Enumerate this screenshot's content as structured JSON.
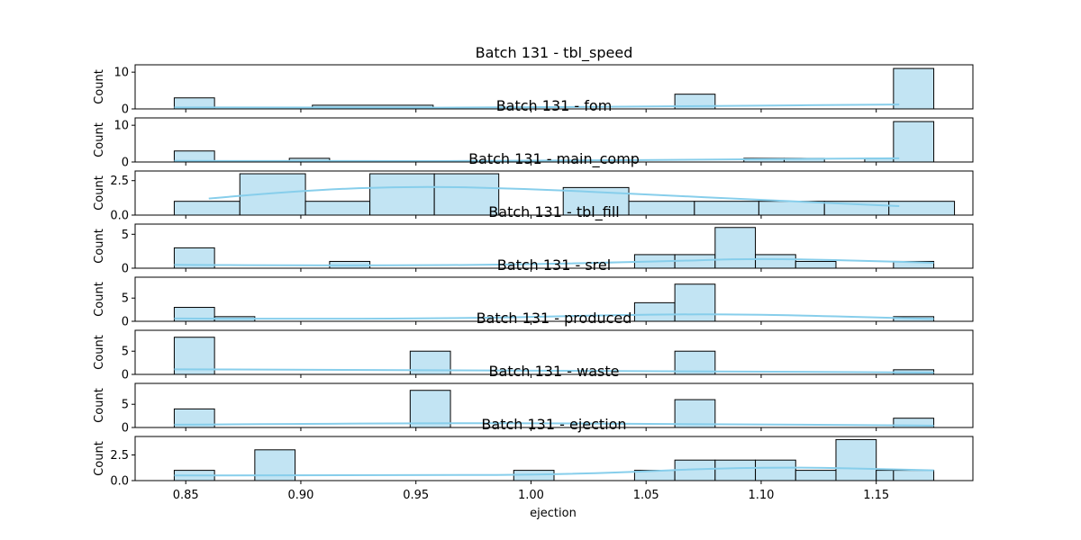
{
  "chart_data": {
    "type": "bar",
    "xlabel": "ejection",
    "xlim": [
      0.828,
      1.192
    ],
    "x_ticks": [
      "0.85",
      "0.90",
      "0.95",
      "1.00",
      "1.05",
      "1.10",
      "1.15"
    ],
    "bar_color": "#c2e4f3",
    "kde_color": "#87ceeb",
    "panels": [
      {
        "title": "Batch 131 - tbl_speed",
        "ylabel": "Count",
        "ylim": [
          0,
          12
        ],
        "y_ticks": [
          "0",
          "10"
        ],
        "y_tick_values": [
          0,
          10
        ],
        "bars": [
          {
            "x0": 0.845,
            "x1": 0.8625,
            "count": 3
          },
          {
            "x0": 0.905,
            "x1": 0.9575,
            "count": 1
          },
          {
            "x0": 1.0625,
            "x1": 1.08,
            "count": 4
          },
          {
            "x0": 1.1575,
            "x1": 1.175,
            "count": 11
          }
        ],
        "kde": [
          [
            0.845,
            0.4
          ],
          [
            0.92,
            0.3
          ],
          [
            1.0,
            0.4
          ],
          [
            1.08,
            0.8
          ],
          [
            1.16,
            1.2
          ]
        ]
      },
      {
        "title": "Batch 131 - fom",
        "ylabel": "Count",
        "ylim": [
          0,
          12
        ],
        "y_ticks": [
          "0",
          "10"
        ],
        "y_tick_values": [
          0,
          10
        ],
        "bars": [
          {
            "x0": 0.845,
            "x1": 0.8625,
            "count": 3
          },
          {
            "x0": 0.895,
            "x1": 0.9125,
            "count": 1
          },
          {
            "x0": 1.0925,
            "x1": 1.11,
            "count": 1
          },
          {
            "x0": 1.11,
            "x1": 1.1275,
            "count": 1
          },
          {
            "x0": 1.145,
            "x1": 1.1625,
            "count": 1
          },
          {
            "x0": 1.1575,
            "x1": 1.175,
            "count": 11
          }
        ],
        "kde": [
          [
            0.845,
            0.3
          ],
          [
            0.92,
            0.2
          ],
          [
            1.0,
            0.3
          ],
          [
            1.08,
            0.7
          ],
          [
            1.16,
            1.0
          ]
        ]
      },
      {
        "title": "Batch 131 - main_comp",
        "ylabel": "Count",
        "ylim": [
          0,
          3.2
        ],
        "y_ticks": [
          "0.0",
          "2.5"
        ],
        "y_tick_values": [
          0,
          2.5
        ],
        "bars": [
          {
            "x0": 0.845,
            "x1": 0.8735,
            "count": 1
          },
          {
            "x0": 0.8735,
            "x1": 0.902,
            "count": 3
          },
          {
            "x0": 0.902,
            "x1": 0.93,
            "count": 1
          },
          {
            "x0": 0.93,
            "x1": 0.958,
            "count": 3
          },
          {
            "x0": 0.958,
            "x1": 0.986,
            "count": 3
          },
          {
            "x0": 1.014,
            "x1": 1.0425,
            "count": 2
          },
          {
            "x0": 1.0425,
            "x1": 1.071,
            "count": 1
          },
          {
            "x0": 1.071,
            "x1": 1.099,
            "count": 1
          },
          {
            "x0": 1.099,
            "x1": 1.1275,
            "count": 1
          },
          {
            "x0": 1.1275,
            "x1": 1.1555,
            "count": 1
          },
          {
            "x0": 1.1555,
            "x1": 1.184,
            "count": 1
          }
        ],
        "kde": [
          [
            0.86,
            1.2
          ],
          [
            0.9,
            1.8
          ],
          [
            0.95,
            2.1
          ],
          [
            1.0,
            1.9
          ],
          [
            1.05,
            1.5
          ],
          [
            1.1,
            1.1
          ],
          [
            1.16,
            0.65
          ]
        ]
      },
      {
        "title": "Batch 131 - tbl_fill",
        "ylabel": "Count",
        "ylim": [
          0,
          6.5
        ],
        "y_ticks": [
          "0",
          "5"
        ],
        "y_tick_values": [
          0,
          5
        ],
        "bars": [
          {
            "x0": 0.845,
            "x1": 0.8625,
            "count": 3
          },
          {
            "x0": 0.9125,
            "x1": 0.93,
            "count": 1
          },
          {
            "x0": 1.045,
            "x1": 1.0625,
            "count": 2
          },
          {
            "x0": 1.0625,
            "x1": 1.08,
            "count": 2
          },
          {
            "x0": 1.08,
            "x1": 1.0975,
            "count": 6
          },
          {
            "x0": 1.0975,
            "x1": 1.115,
            "count": 2
          },
          {
            "x0": 1.115,
            "x1": 1.1325,
            "count": 1
          },
          {
            "x0": 1.1575,
            "x1": 1.175,
            "count": 1
          }
        ],
        "kde": [
          [
            0.845,
            0.5
          ],
          [
            0.95,
            0.3
          ],
          [
            1.05,
            0.9
          ],
          [
            1.1,
            1.5
          ],
          [
            1.175,
            0.8
          ]
        ]
      },
      {
        "title": "Batch 131 - srel",
        "ylabel": "Count",
        "ylim": [
          0,
          9.5
        ],
        "y_ticks": [
          "0",
          "5"
        ],
        "y_tick_values": [
          0,
          5
        ],
        "bars": [
          {
            "x0": 0.845,
            "x1": 0.8625,
            "count": 3
          },
          {
            "x0": 0.8625,
            "x1": 0.88,
            "count": 1
          },
          {
            "x0": 1.045,
            "x1": 1.0625,
            "count": 4
          },
          {
            "x0": 1.0625,
            "x1": 1.08,
            "count": 8
          },
          {
            "x0": 1.1575,
            "x1": 1.175,
            "count": 1
          }
        ],
        "kde": [
          [
            0.845,
            0.6
          ],
          [
            0.95,
            0.4
          ],
          [
            1.05,
            1.5
          ],
          [
            1.1,
            1.5
          ],
          [
            1.175,
            0.5
          ]
        ]
      },
      {
        "title": "Batch 131 - produced",
        "ylabel": "Count",
        "ylim": [
          0,
          9.5
        ],
        "y_ticks": [
          "0",
          "5"
        ],
        "y_tick_values": [
          0,
          5
        ],
        "bars": [
          {
            "x0": 0.845,
            "x1": 0.8625,
            "count": 8
          },
          {
            "x0": 0.9475,
            "x1": 0.965,
            "count": 5
          },
          {
            "x0": 1.0625,
            "x1": 1.08,
            "count": 5
          },
          {
            "x0": 1.1575,
            "x1": 1.175,
            "count": 1
          }
        ],
        "kde": [
          [
            0.845,
            1.1
          ],
          [
            0.95,
            0.9
          ],
          [
            1.06,
            0.7
          ],
          [
            1.175,
            0.4
          ]
        ]
      },
      {
        "title": "Batch 131 - waste",
        "ylabel": "Count",
        "ylim": [
          0,
          9.5
        ],
        "y_ticks": [
          "0",
          "5"
        ],
        "y_tick_values": [
          0,
          5
        ],
        "bars": [
          {
            "x0": 0.845,
            "x1": 0.8625,
            "count": 4
          },
          {
            "x0": 0.9475,
            "x1": 0.965,
            "count": 8
          },
          {
            "x0": 1.0625,
            "x1": 1.08,
            "count": 6
          },
          {
            "x0": 1.1575,
            "x1": 1.175,
            "count": 2
          }
        ],
        "kde": [
          [
            0.845,
            0.6
          ],
          [
            0.95,
            1.0
          ],
          [
            1.06,
            0.8
          ],
          [
            1.175,
            0.4
          ]
        ]
      },
      {
        "title": "Batch 131 - ejection",
        "ylabel": "Count",
        "ylim": [
          0,
          4.3
        ],
        "y_ticks": [
          "0.0",
          "2.5"
        ],
        "y_tick_values": [
          0,
          2.5
        ],
        "bars": [
          {
            "x0": 0.845,
            "x1": 0.8625,
            "count": 1
          },
          {
            "x0": 0.88,
            "x1": 0.8975,
            "count": 3
          },
          {
            "x0": 0.9925,
            "x1": 1.01,
            "count": 1
          },
          {
            "x0": 1.045,
            "x1": 1.0625,
            "count": 1
          },
          {
            "x0": 1.0625,
            "x1": 1.08,
            "count": 2
          },
          {
            "x0": 1.08,
            "x1": 1.0975,
            "count": 2
          },
          {
            "x0": 1.0975,
            "x1": 1.115,
            "count": 2
          },
          {
            "x0": 1.115,
            "x1": 1.1325,
            "count": 1
          },
          {
            "x0": 1.1325,
            "x1": 1.15,
            "count": 4
          },
          {
            "x0": 1.15,
            "x1": 1.1575,
            "count": 1
          },
          {
            "x0": 1.1575,
            "x1": 1.175,
            "count": 1
          }
        ],
        "kde": [
          [
            0.845,
            0.5
          ],
          [
            0.95,
            0.5
          ],
          [
            1.02,
            0.6
          ],
          [
            1.1,
            1.4
          ],
          [
            1.175,
            1.0
          ]
        ]
      }
    ]
  }
}
